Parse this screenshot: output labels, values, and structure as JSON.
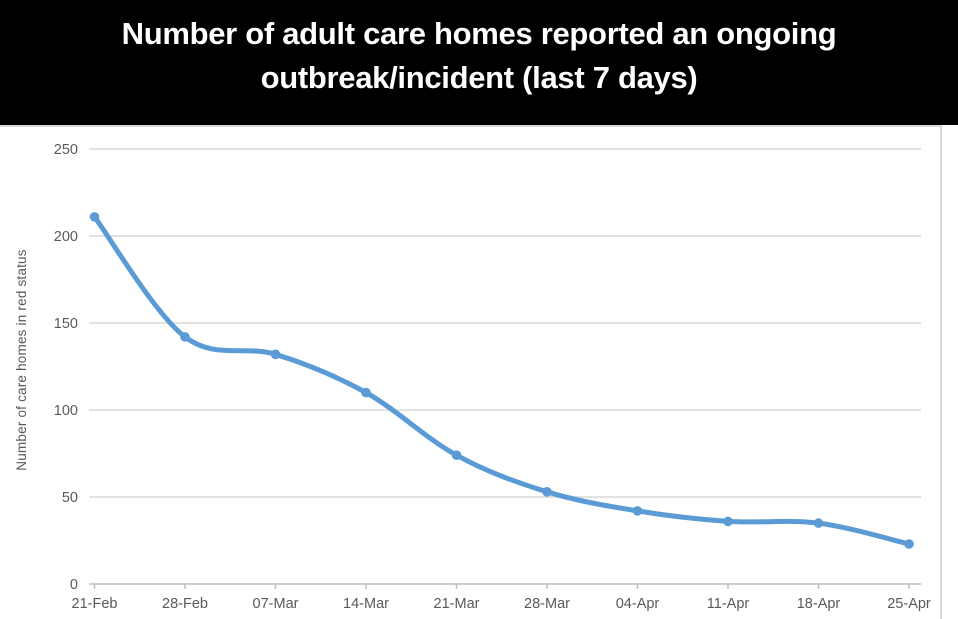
{
  "header": {
    "title_line1": "Number of adult care homes reported an ongoing",
    "title_line2": "outbreak/incident (last 7 days)"
  },
  "chart_data": {
    "type": "line",
    "title": "Number of adult care homes reported an ongoing outbreak/incident (last 7 days)",
    "categories": [
      "21-Feb",
      "28-Feb",
      "07-Mar",
      "14-Mar",
      "21-Mar",
      "28-Mar",
      "04-Apr",
      "11-Apr",
      "18-Apr",
      "25-Apr"
    ],
    "values": [
      211,
      142,
      132,
      110,
      74,
      53,
      42,
      36,
      35,
      23
    ],
    "xlabel": "",
    "ylabel": "Number of care homes in red status",
    "ylim": [
      0,
      250
    ],
    "yticks": [
      0,
      50,
      100,
      150,
      200,
      250
    ],
    "grid": "horizontal",
    "legend": "none",
    "smooth_line": true,
    "markers": "circle",
    "colors": {
      "line": "#5B9BD5",
      "marker": "#5B9BD5",
      "gridline": "#D9D9D9",
      "axis_line": "#BFBFBF",
      "tick_label": "#595959",
      "axis_title": "#595959",
      "title_bg": "#000000",
      "title_fg": "#FFFFFF",
      "panel_border": "#D9D9D9"
    }
  }
}
